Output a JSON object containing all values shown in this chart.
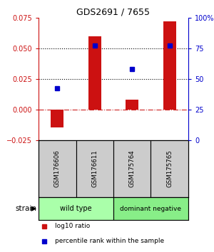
{
  "title": "GDS2691 / 7655",
  "samples": [
    "GSM176606",
    "GSM176611",
    "GSM175764",
    "GSM175765"
  ],
  "log10_ratio": [
    -0.015,
    0.06,
    0.008,
    0.072
  ],
  "percentile_rank": [
    42,
    77,
    58,
    77
  ],
  "ylim_left": [
    -0.025,
    0.075
  ],
  "ylim_right": [
    0,
    100
  ],
  "yticks_left": [
    -0.025,
    0,
    0.025,
    0.05,
    0.075
  ],
  "ytick_labels_right": [
    "0",
    "25",
    "50",
    "75",
    "100%"
  ],
  "bar_color": "#cc1111",
  "dot_color": "#0000cc",
  "zero_line_color": "#cc2222",
  "dotted_line_color": "#000000",
  "strain_groups": [
    {
      "label": "wild type",
      "color": "#aaffaa",
      "start": 0,
      "end": 1
    },
    {
      "label": "dominant negative",
      "color": "#88ee88",
      "start": 2,
      "end": 3
    }
  ],
  "legend_items": [
    {
      "color": "#cc1111",
      "label": "log10 ratio"
    },
    {
      "color": "#0000cc",
      "label": "percentile rank within the sample"
    }
  ],
  "strain_label": "strain",
  "bar_width": 0.35,
  "fig_width": 3.0,
  "fig_height": 3.54,
  "dpi": 100,
  "sample_box_color": "#cccccc",
  "axis_frame_color": "#000000"
}
